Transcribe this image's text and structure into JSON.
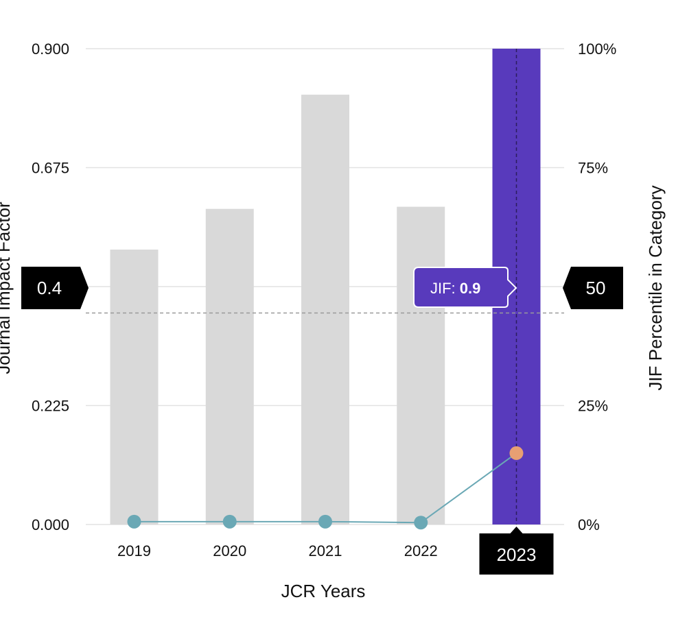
{
  "chart_data": {
    "type": "bar",
    "categories": [
      "2019",
      "2020",
      "2021",
      "2022",
      "2023"
    ],
    "series": [
      {
        "type": "bar",
        "axis": "left",
        "values": [
          0.52,
          0.597,
          0.813,
          0.601,
          0.9
        ]
      },
      {
        "type": "line",
        "axis": "right",
        "values": [
          0.6,
          0.6,
          0.6,
          0.4,
          15
        ]
      }
    ],
    "ylabel": "Journal Impact Factor",
    "y2label": "JIF Percentile in Category",
    "xlabel": "JCR Years",
    "ylim": [
      0,
      0.9
    ],
    "y2lim": [
      0,
      100
    ],
    "yticks": [
      "0.000",
      "0.225",
      "0.675",
      "0.900"
    ],
    "y2ticks": [
      "0%",
      "25%",
      "75%",
      "100%"
    ],
    "grid": true,
    "highlight_category": "2023",
    "reference_line": {
      "left_value": 0.4,
      "left_label": "0.4",
      "right_label": "50"
    },
    "tooltip": {
      "label": "JIF: ",
      "value": "0.9"
    },
    "colors": {
      "bar": "#d9d9d9",
      "highlight_bar": "#583abc",
      "line": "#6aa8b5",
      "point": "#6aa8b5",
      "highlight_point": "#e89f73",
      "marker_box": "#000000",
      "gridline": "#e2e2e2",
      "reference_line": "#9a9a9a",
      "text": "#111111"
    }
  }
}
